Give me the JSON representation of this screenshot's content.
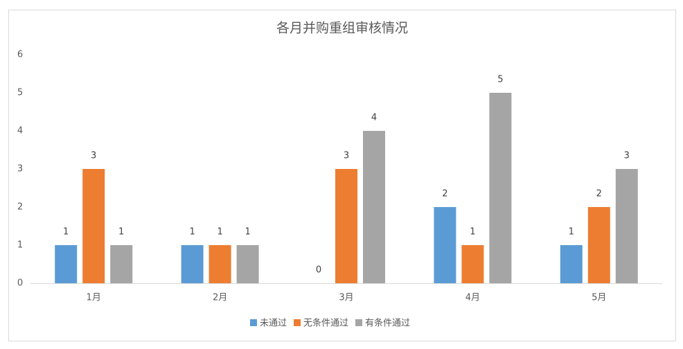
{
  "chart_data": {
    "type": "bar",
    "title": "各月并购重组审核情况",
    "categories": [
      "1月",
      "2月",
      "3月",
      "4月",
      "5月"
    ],
    "series": [
      {
        "name": "未通过",
        "color": "#5b9bd5",
        "values": [
          1,
          1,
          0,
          2,
          1
        ]
      },
      {
        "name": "无条件通过",
        "color": "#ed7d31",
        "values": [
          3,
          1,
          3,
          1,
          2
        ]
      },
      {
        "name": "有条件通过",
        "color": "#a5a5a5",
        "values": [
          1,
          1,
          4,
          5,
          3
        ]
      }
    ],
    "ylim": [
      0,
      6
    ],
    "yticks": [
      0,
      1,
      2,
      3,
      4,
      5,
      6
    ],
    "grid": false,
    "legend": "bottom"
  }
}
